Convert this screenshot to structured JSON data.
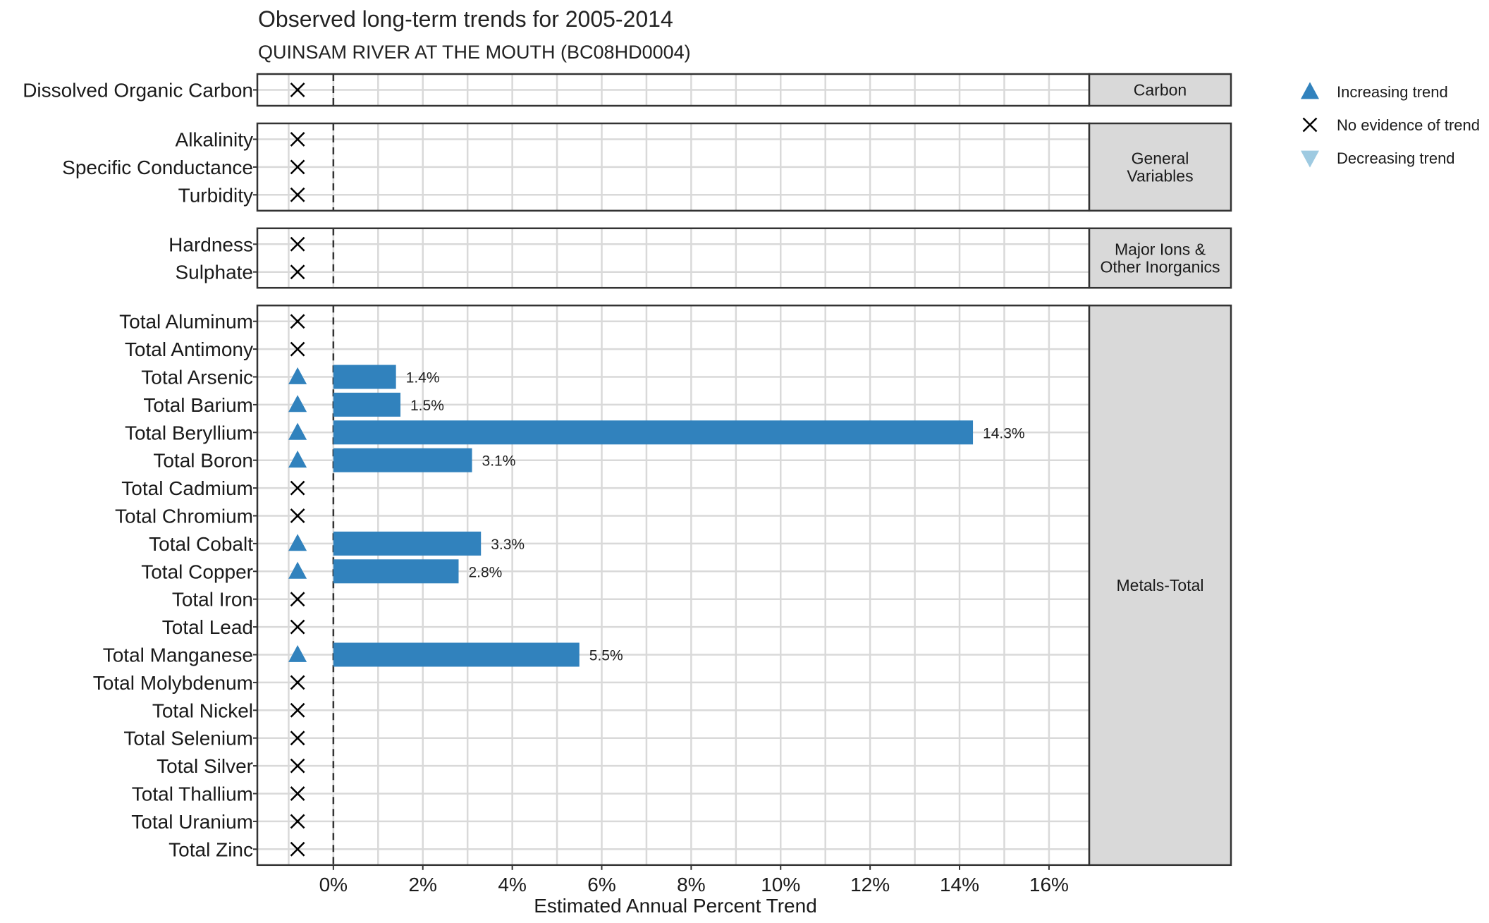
{
  "chart_data": {
    "type": "bar",
    "title": "Observed long-term trends for 2005-2014",
    "subtitle": "QUINSAM RIVER AT THE MOUTH (BC08HD0004)",
    "xlabel": "Estimated Annual Percent Trend",
    "xlim": [
      -1.7,
      16.9
    ],
    "xticks": [
      0,
      2,
      4,
      6,
      8,
      10,
      12,
      14,
      16
    ],
    "xtick_labels": [
      "0%",
      "2%",
      "4%",
      "6%",
      "8%",
      "10%",
      "12%",
      "14%",
      "16%"
    ],
    "reference_line_x": 0,
    "grid": true,
    "marker_x": -0.8,
    "legend": {
      "placement": "right",
      "items": [
        {
          "key": "increasing",
          "label": "Increasing trend",
          "symbol": "triangle-up",
          "color": "#3182BD"
        },
        {
          "key": "none",
          "label": "No evidence of trend",
          "symbol": "cross",
          "color": "#000000"
        },
        {
          "key": "decreasing",
          "label": "Decreasing trend",
          "symbol": "triangle-down",
          "color": "#9ECAE1"
        }
      ]
    },
    "colors": {
      "bar": "#3182BD",
      "strip": "#D9D9D9",
      "grid": "#D9D9D9"
    },
    "panels": [
      {
        "strip": [
          "Carbon"
        ],
        "rows": [
          {
            "label": "Dissolved Organic Carbon",
            "trend": "none",
            "value": null
          }
        ]
      },
      {
        "strip": [
          "General",
          "Variables"
        ],
        "rows": [
          {
            "label": "Alkalinity",
            "trend": "none",
            "value": null
          },
          {
            "label": "Specific Conductance",
            "trend": "none",
            "value": null
          },
          {
            "label": "Turbidity",
            "trend": "none",
            "value": null
          }
        ]
      },
      {
        "strip": [
          "Major Ions &",
          "Other Inorganics"
        ],
        "rows": [
          {
            "label": "Hardness",
            "trend": "none",
            "value": null
          },
          {
            "label": "Sulphate",
            "trend": "none",
            "value": null
          }
        ]
      },
      {
        "strip": [
          "Metals-Total"
        ],
        "rows": [
          {
            "label": "Total Aluminum",
            "trend": "none",
            "value": null
          },
          {
            "label": "Total Antimony",
            "trend": "none",
            "value": null
          },
          {
            "label": "Total Arsenic",
            "trend": "increasing",
            "value": 1.4,
            "value_label": "1.4%"
          },
          {
            "label": "Total Barium",
            "trend": "increasing",
            "value": 1.5,
            "value_label": "1.5%"
          },
          {
            "label": "Total Beryllium",
            "trend": "increasing",
            "value": 14.3,
            "value_label": "14.3%"
          },
          {
            "label": "Total Boron",
            "trend": "increasing",
            "value": 3.1,
            "value_label": "3.1%"
          },
          {
            "label": "Total Cadmium",
            "trend": "none",
            "value": null
          },
          {
            "label": "Total Chromium",
            "trend": "none",
            "value": null
          },
          {
            "label": "Total Cobalt",
            "trend": "increasing",
            "value": 3.3,
            "value_label": "3.3%"
          },
          {
            "label": "Total Copper",
            "trend": "increasing",
            "value": 2.8,
            "value_label": "2.8%"
          },
          {
            "label": "Total Iron",
            "trend": "none",
            "value": null
          },
          {
            "label": "Total Lead",
            "trend": "none",
            "value": null
          },
          {
            "label": "Total Manganese",
            "trend": "increasing",
            "value": 5.5,
            "value_label": "5.5%"
          },
          {
            "label": "Total Molybdenum",
            "trend": "none",
            "value": null
          },
          {
            "label": "Total Nickel",
            "trend": "none",
            "value": null
          },
          {
            "label": "Total Selenium",
            "trend": "none",
            "value": null
          },
          {
            "label": "Total Silver",
            "trend": "none",
            "value": null
          },
          {
            "label": "Total Thallium",
            "trend": "none",
            "value": null
          },
          {
            "label": "Total Uranium",
            "trend": "none",
            "value": null
          },
          {
            "label": "Total Zinc",
            "trend": "none",
            "value": null
          }
        ]
      }
    ]
  }
}
